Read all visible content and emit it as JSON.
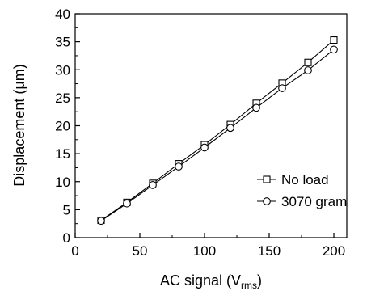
{
  "chart_data": {
    "type": "line",
    "xlabel": "AC signal (V",
    "xlabel_sub": "rms",
    "xlabel_end": ")",
    "ylabel": "Displacement (μm)",
    "xlim": [
      0,
      210
    ],
    "ylim": [
      0,
      40
    ],
    "x_ticks": [
      0,
      50,
      100,
      150,
      200
    ],
    "y_ticks": [
      0,
      5,
      10,
      15,
      20,
      25,
      30,
      35,
      40
    ],
    "grid": false,
    "legend_position": "bottom-right",
    "x": [
      20,
      40,
      60,
      80,
      100,
      120,
      140,
      160,
      180,
      200
    ],
    "series": [
      {
        "name": "No load",
        "marker": "square",
        "values": [
          3.1,
          6.3,
          9.7,
          13.2,
          16.6,
          20.2,
          24.0,
          27.6,
          31.3,
          35.3
        ]
      },
      {
        "name": "3070 gram",
        "marker": "circle",
        "values": [
          3.0,
          6.1,
          9.4,
          12.7,
          16.1,
          19.6,
          23.2,
          26.7,
          29.9,
          33.6
        ]
      }
    ]
  }
}
